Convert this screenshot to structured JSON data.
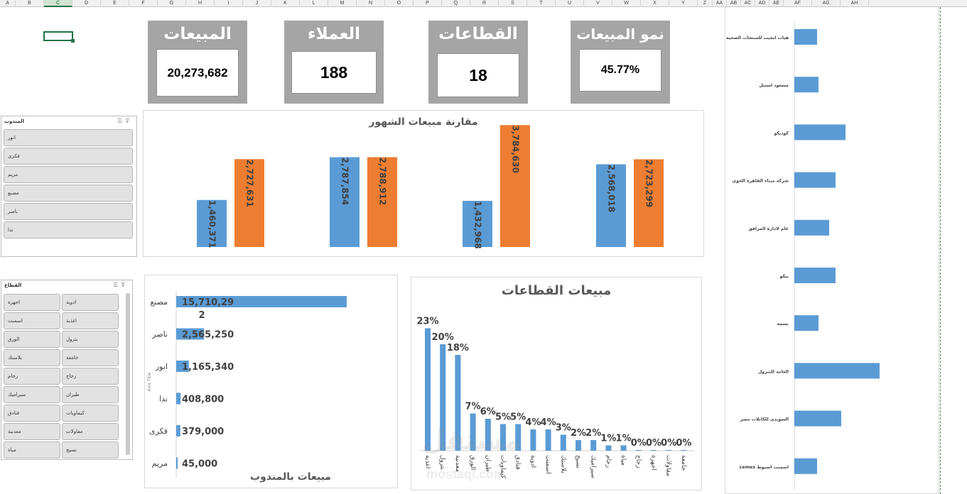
{
  "columns": [
    "A",
    "B",
    "C",
    "D",
    "E",
    "F",
    "G",
    "H",
    "I",
    "J",
    "K",
    "L",
    "M",
    "N",
    "O",
    "P",
    "Q",
    "R",
    "S",
    "T",
    "U",
    "V",
    "W",
    "X",
    "Y",
    "Z",
    "AA",
    "AB",
    "AC",
    "AD",
    "AE",
    "AF",
    "AG",
    "AH"
  ],
  "selected_column": "C",
  "kpis": {
    "sales": {
      "title": "المبيعات",
      "value": "20,273,682"
    },
    "customers": {
      "title": "العملاء",
      "value": "188"
    },
    "sectors": {
      "title": "القطاعات",
      "value": "18"
    },
    "growth": {
      "title": "نمو المبيعات",
      "value": "45.77%"
    }
  },
  "slicer_rep": {
    "title": "المندوب",
    "items": [
      "انور",
      "فكرى",
      "مريم",
      "مصنع",
      "ناصر",
      "ندا"
    ]
  },
  "slicer_sector": {
    "title": "القطاع",
    "items": [
      [
        "اجهزة",
        "ادوية"
      ],
      [
        "اسمنت",
        "اغذية"
      ],
      [
        "الورق",
        "بترول"
      ],
      [
        "بلاستك",
        "جامعة"
      ],
      [
        "رخام",
        "زجاج"
      ],
      [
        "سيراميك",
        "طيران"
      ],
      [
        "فنادق",
        "كيماويات"
      ],
      [
        "معدنية",
        "مقاولات"
      ],
      [
        "مياة",
        "نسيج"
      ]
    ]
  },
  "colors": {
    "blue": "#5b9bd5",
    "orange": "#ed7d31",
    "kpi_gray": "#a5a5a5",
    "excel_green": "#217346"
  },
  "chart_data": [
    {
      "id": "monthly",
      "type": "bar",
      "title": "مقارنة مبيعات الشهور",
      "series": [
        {
          "color": "#5b9bd5",
          "values": [
            1460371,
            2787854,
            1432968,
            2568018
          ],
          "labels": [
            "1,460,371",
            "2,787,854",
            "1,432,968",
            "2,568,018"
          ]
        },
        {
          "color": "#ed7d31",
          "values": [
            2727631,
            2788912,
            3784630,
            2723299
          ],
          "labels": [
            "2,727,631",
            "2,788,912",
            "3,784,630",
            "2,723,299"
          ]
        }
      ],
      "ylim": [
        0,
        3900000
      ]
    },
    {
      "id": "by_rep",
      "type": "bar",
      "orientation": "horizontal",
      "title": "مبيعات بالمندوب",
      "ylabel": "Axis Title",
      "categories": [
        "مصنع",
        "ناصر",
        "انور",
        "ندا",
        "فكرى",
        "مريم"
      ],
      "values": [
        15710292,
        2565250,
        1165340,
        408800,
        379000,
        45000
      ],
      "labels": [
        "15,710,29",
        "2,565,250",
        "1,165,340",
        "408,800",
        "379,000",
        "45,000"
      ],
      "label_overflow": [
        "2",
        "",
        "",
        "",
        "",
        ""
      ]
    },
    {
      "id": "by_sector",
      "type": "bar",
      "title": "مبيعات القطاعات",
      "categories": [
        "اغذية",
        "بترول",
        "معدنية",
        "الورق",
        "طيران",
        "كيماويات",
        "فنادق",
        "ادوية",
        "اسمنت",
        "بلاستك",
        "نسيج",
        "سيراميك",
        "رخام",
        "مياة",
        "زجاج",
        "اجهزة",
        "مقاولات",
        "جامعة"
      ],
      "values": [
        23,
        20,
        18,
        7,
        6,
        5,
        5,
        4,
        4,
        3,
        2,
        2,
        1,
        1,
        0,
        0,
        0,
        0
      ],
      "labels": [
        "23%",
        "20%",
        "18%",
        "7%",
        "6%",
        "5%",
        "5%",
        "4%",
        "4%",
        "3%",
        "2%",
        "2%",
        "1%",
        "1%",
        "0%",
        "0%",
        "0%",
        "0%"
      ],
      "ylim": [
        0,
        24
      ]
    },
    {
      "id": "by_customer",
      "type": "bar",
      "orientation": "horizontal",
      "categories": [
        "هيات ايجيت للمنتجات الصحية",
        "مسعود استيل",
        "كوديكو",
        "شركة ميناء القاهرة الجوى",
        "عام لادارة المرافق",
        "بيكو",
        "بسمة",
        "العامة للبترول",
        "السويدى للكابلات مصر",
        "cemex اسمنت اسيوط"
      ],
      "values": [
        32,
        34,
        72,
        58,
        49,
        58,
        34,
        120,
        66,
        32
      ],
      "xlim": [
        0,
        130
      ]
    }
  ],
  "watermark": {
    "ar": "مستقل",
    "en": "mostaql.com"
  }
}
